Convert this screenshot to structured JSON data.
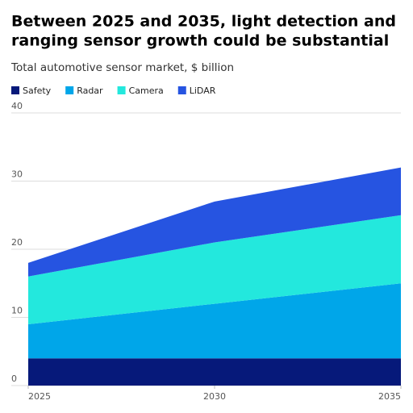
{
  "chart_data": {
    "type": "stacked-area",
    "title": [
      "Between 2025 and 2035, light detection and",
      "ranging sensor growth could be substantial"
    ],
    "subtitle": "Total automotive sensor market, $ billion",
    "x": [
      2025,
      2030,
      2035
    ],
    "series": [
      {
        "name": "Safety",
        "color": "#06197a",
        "values": [
          4,
          4,
          4
        ]
      },
      {
        "name": "Radar",
        "color": "#00a6e9",
        "values": [
          5,
          8,
          11
        ]
      },
      {
        "name": "Camera",
        "color": "#23e8dd",
        "values": [
          7,
          9,
          10
        ]
      },
      {
        "name": "LiDAR",
        "color": "#2654e1",
        "values": [
          2,
          6,
          7
        ]
      }
    ],
    "xlim": [
      2025,
      2035
    ],
    "xticks": [
      2025,
      2030,
      2035
    ],
    "ylim": [
      0,
      40
    ],
    "yticks": [
      0,
      10,
      20,
      30,
      40
    ],
    "grid": true
  }
}
